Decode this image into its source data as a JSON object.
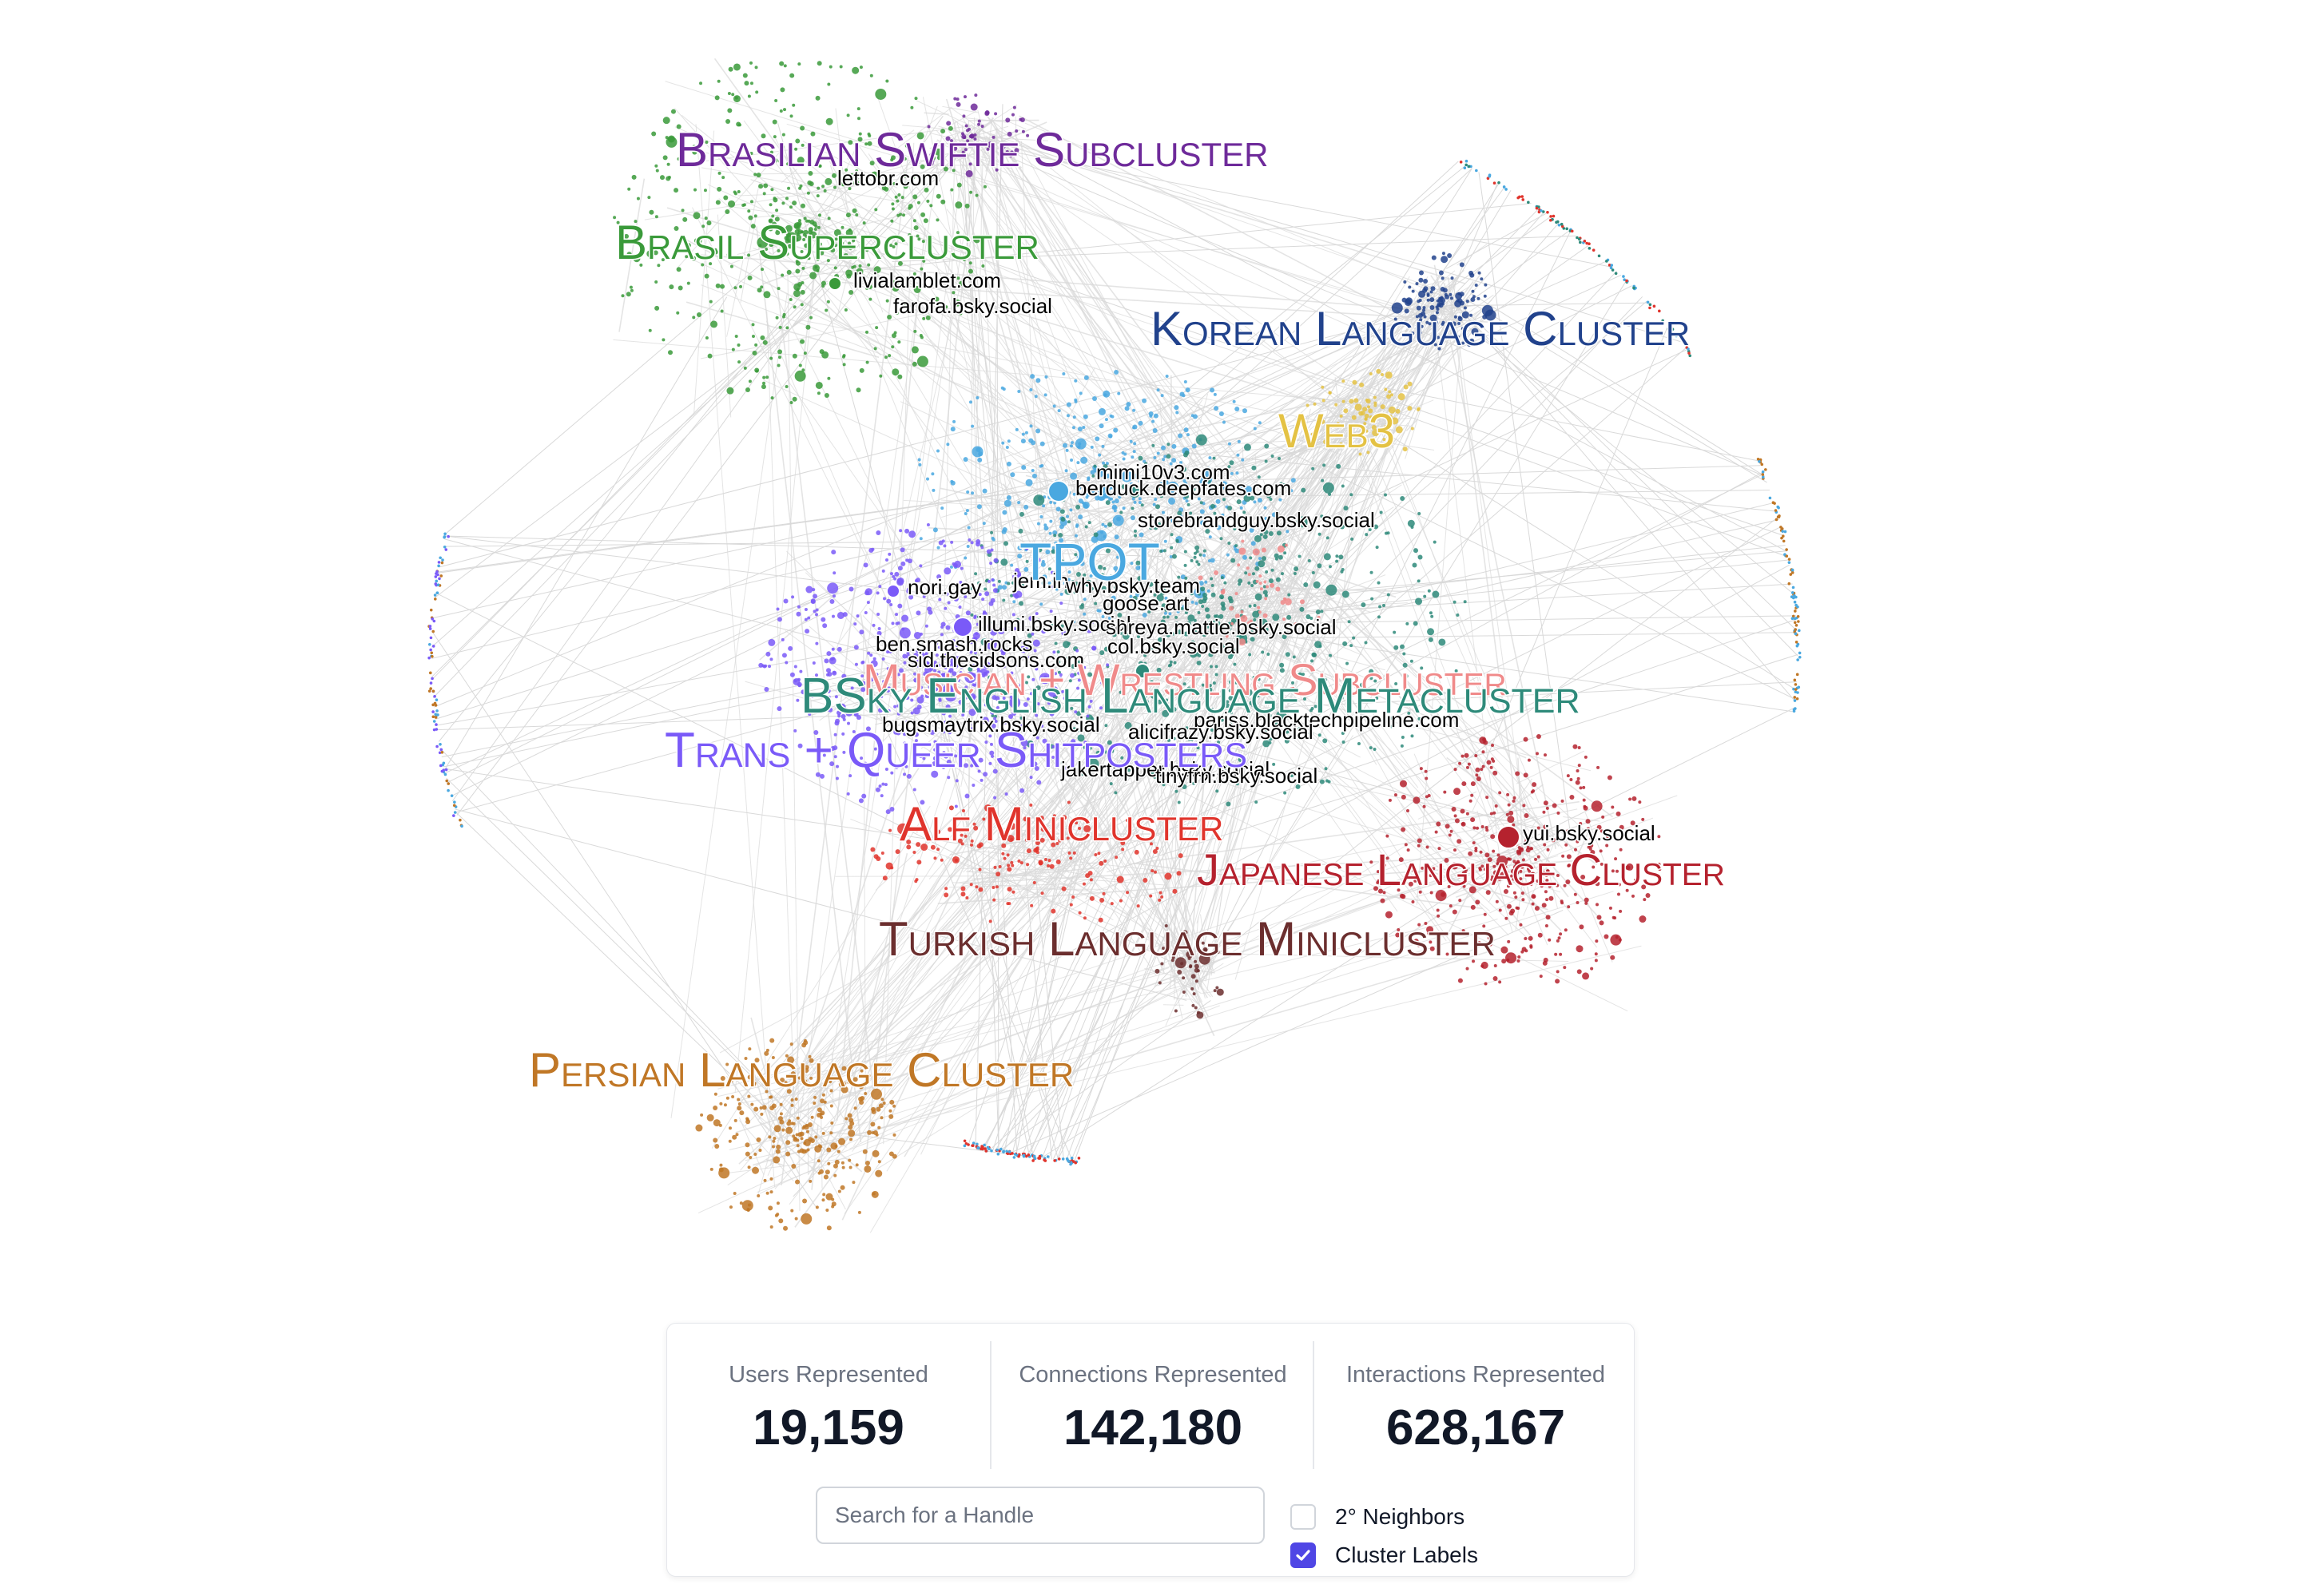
{
  "colors": {
    "brasil": "#3a9a3a",
    "swiftie": "#6e2a9a",
    "korean": "#21428c",
    "web3": "#e4c244",
    "tpot": "#4aa8e0",
    "english": "#2e8a7a",
    "musician": "#f08a8a",
    "trans": "#7a5af8",
    "alf": "#e0342c",
    "japanese": "#b5222e",
    "turkish": "#6b2e2e",
    "persian": "#c07726",
    "edge": "#d9d9d9"
  },
  "graph": {
    "cluster_labels": [
      {
        "id": "swiftie",
        "text": "Brasilian Swiftie Subcluster",
        "color": "swiftie"
      },
      {
        "id": "brasil",
        "text": "Brasil Supercluster",
        "color": "brasil"
      },
      {
        "id": "korean",
        "text": "Korean Language Cluster",
        "color": "korean"
      },
      {
        "id": "web3",
        "text": "Web3",
        "color": "web3"
      },
      {
        "id": "tpot",
        "text": "TPOT",
        "color": "tpot"
      },
      {
        "id": "musician",
        "text": "Musician + Wrestling Subcluster",
        "color": "musician"
      },
      {
        "id": "english",
        "text": "BSky English Language Metacluster",
        "color": "english"
      },
      {
        "id": "trans",
        "text": "Trans + Queer Shitposters",
        "color": "trans"
      },
      {
        "id": "alf",
        "text": "Alf Minicluster",
        "color": "alf"
      },
      {
        "id": "japanese",
        "text": "Japanese Language Cluster",
        "color": "japanese"
      },
      {
        "id": "turkish",
        "text": "Turkish Language Minicluster",
        "color": "turkish"
      },
      {
        "id": "persian",
        "text": "Persian Language Cluster",
        "color": "persian"
      }
    ],
    "handles": [
      "lettobr.com",
      "livialamblet.com",
      "farofa.bsky.social",
      "mimi10v3.com",
      "berduck.deepfates.com",
      "storebrandguy.bsky.social",
      "nori.gay",
      "jem.in",
      "why.bsky.team",
      "goose.art",
      "illumi.bsky.social",
      "shreya.mattie.bsky.social",
      "ben.smash.rocks",
      "col.bsky.social",
      "sid.thesidsons.com",
      "bugsmaytrix.bsky.social",
      "pariss.blacktechpipeline.com",
      "alicifrazy.bsky.social",
      "jakertapper.bsky.social",
      "tinyfrn.bsky.social",
      "yui.bsky.social"
    ]
  },
  "stats": [
    {
      "label": "Users Represented",
      "value": "19,159"
    },
    {
      "label": "Connections Represented",
      "value": "142,180"
    },
    {
      "label": "Interactions Represented",
      "value": "628,167"
    }
  ],
  "controls": {
    "search_placeholder": "Search for a Handle",
    "neighbors_label": "2° Neighbors",
    "neighbors_checked": false,
    "cluster_labels_label": "Cluster Labels",
    "cluster_labels_checked": true
  }
}
